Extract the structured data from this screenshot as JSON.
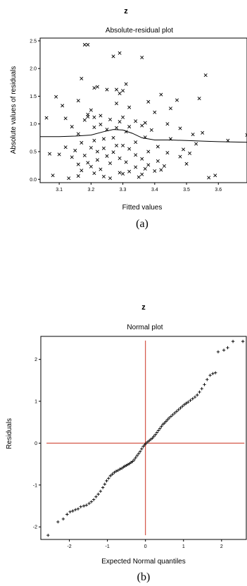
{
  "charts": [
    {
      "header": "z",
      "title": "Absolute-residual plot",
      "caption": "(a)",
      "chart_data": {
        "type": "scatter",
        "xlabel": "Fitted values",
        "ylabel": "Absolute values of residuals",
        "xlim": [
          3.04,
          3.69
        ],
        "ylim": [
          -0.06,
          2.55
        ],
        "x_ticks": [
          3.1,
          3.2,
          3.3,
          3.4,
          3.5,
          3.6
        ],
        "x_tick_labels": [
          "3.1",
          "3.2",
          "3.3",
          "3.4",
          "3.5",
          "3.6"
        ],
        "y_ticks": [
          0.0,
          0.5,
          1.0,
          1.5,
          2.0,
          2.5
        ],
        "y_tick_labels": [
          "0.0",
          "0.5",
          "1.0",
          "1.5",
          "2.0",
          "2.5"
        ],
        "marker": "x",
        "points": [
          [
            3.18,
            2.43
          ],
          [
            3.19,
            2.43
          ],
          [
            3.29,
            2.28
          ],
          [
            3.27,
            2.22
          ],
          [
            3.36,
            2.2
          ],
          [
            3.56,
            1.88
          ],
          [
            3.17,
            1.82
          ],
          [
            3.31,
            1.72
          ],
          [
            3.22,
            1.67
          ],
          [
            3.21,
            1.65
          ],
          [
            3.25,
            1.62
          ],
          [
            3.28,
            1.62
          ],
          [
            3.3,
            1.6
          ],
          [
            3.29,
            1.55
          ],
          [
            3.42,
            1.53
          ],
          [
            3.09,
            1.49
          ],
          [
            3.54,
            1.46
          ],
          [
            3.47,
            1.43
          ],
          [
            3.16,
            1.42
          ],
          [
            3.38,
            1.4
          ],
          [
            3.28,
            1.37
          ],
          [
            3.11,
            1.33
          ],
          [
            3.32,
            1.3
          ],
          [
            3.45,
            1.28
          ],
          [
            3.2,
            1.25
          ],
          [
            3.4,
            1.21
          ],
          [
            3.19,
            1.17
          ],
          [
            3.23,
            1.15
          ],
          [
            3.19,
            1.13
          ],
          [
            3.21,
            1.12
          ],
          [
            3.3,
            1.12
          ],
          [
            3.06,
            1.11
          ],
          [
            3.12,
            1.1
          ],
          [
            3.26,
            1.08
          ],
          [
            3.18,
            1.07
          ],
          [
            3.34,
            1.05
          ],
          [
            3.29,
            1.04
          ],
          [
            3.37,
            1.02
          ],
          [
            3.44,
            1.0
          ],
          [
            3.23,
            0.99
          ],
          [
            3.36,
            0.97
          ],
          [
            3.32,
            0.95
          ],
          [
            3.14,
            0.95
          ],
          [
            3.21,
            0.94
          ],
          [
            3.28,
            0.93
          ],
          [
            3.48,
            0.92
          ],
          [
            3.25,
            0.9
          ],
          [
            3.39,
            0.89
          ],
          [
            3.31,
            0.86
          ],
          [
            3.55,
            0.84
          ],
          [
            3.16,
            0.82
          ],
          [
            3.52,
            0.81
          ],
          [
            3.69,
            0.8
          ],
          [
            3.37,
            0.76
          ],
          [
            3.27,
            0.75
          ],
          [
            3.45,
            0.73
          ],
          [
            3.24,
            0.73
          ],
          [
            3.63,
            0.7
          ],
          [
            3.21,
            0.7
          ],
          [
            3.34,
            0.67
          ],
          [
            3.17,
            0.66
          ],
          [
            3.53,
            0.64
          ],
          [
            3.28,
            0.61
          ],
          [
            3.3,
            0.61
          ],
          [
            3.41,
            0.59
          ],
          [
            3.12,
            0.58
          ],
          [
            3.2,
            0.57
          ],
          [
            3.24,
            0.56
          ],
          [
            3.32,
            0.55
          ],
          [
            3.49,
            0.54
          ],
          [
            3.15,
            0.52
          ],
          [
            3.22,
            0.5
          ],
          [
            3.38,
            0.5
          ],
          [
            3.27,
            0.49
          ],
          [
            3.44,
            0.48
          ],
          [
            3.51,
            0.47
          ],
          [
            3.07,
            0.46
          ],
          [
            3.1,
            0.45
          ],
          [
            3.34,
            0.44
          ],
          [
            3.18,
            0.43
          ],
          [
            3.25,
            0.42
          ],
          [
            3.48,
            0.41
          ],
          [
            3.14,
            0.4
          ],
          [
            3.29,
            0.38
          ],
          [
            3.36,
            0.37
          ],
          [
            3.22,
            0.35
          ],
          [
            3.41,
            0.33
          ],
          [
            3.31,
            0.31
          ],
          [
            3.19,
            0.3
          ],
          [
            3.26,
            0.29
          ],
          [
            3.5,
            0.28
          ],
          [
            3.16,
            0.27
          ],
          [
            3.38,
            0.26
          ],
          [
            3.43,
            0.24
          ],
          [
            3.2,
            0.23
          ],
          [
            3.34,
            0.22
          ],
          [
            3.37,
            0.19
          ],
          [
            3.23,
            0.18
          ],
          [
            3.42,
            0.17
          ],
          [
            3.17,
            0.16
          ],
          [
            3.4,
            0.15
          ],
          [
            3.32,
            0.14
          ],
          [
            3.29,
            0.12
          ],
          [
            3.21,
            0.11
          ],
          [
            3.3,
            0.1
          ],
          [
            3.36,
            0.09
          ],
          [
            3.59,
            0.07
          ],
          [
            3.08,
            0.07
          ],
          [
            3.16,
            0.06
          ],
          [
            3.24,
            0.05
          ],
          [
            3.35,
            0.04
          ],
          [
            3.57,
            0.03
          ],
          [
            3.26,
            0.02
          ],
          [
            3.13,
            0.02
          ]
        ],
        "smooth_line": [
          [
            3.04,
            0.77
          ],
          [
            3.1,
            0.77
          ],
          [
            3.15,
            0.78
          ],
          [
            3.2,
            0.8
          ],
          [
            3.24,
            0.86
          ],
          [
            3.27,
            0.9
          ],
          [
            3.3,
            0.89
          ],
          [
            3.33,
            0.83
          ],
          [
            3.36,
            0.75
          ],
          [
            3.4,
            0.71
          ],
          [
            3.45,
            0.71
          ],
          [
            3.5,
            0.7
          ],
          [
            3.55,
            0.69
          ],
          [
            3.6,
            0.68
          ],
          [
            3.69,
            0.67
          ]
        ],
        "grid": false
      }
    },
    {
      "header": "z",
      "title": "Normal plot",
      "caption": "(b)",
      "chart_data": {
        "type": "scatter",
        "xlabel": "Expected Normal quantiles",
        "ylabel": "Residuals",
        "xlim": [
          -2.75,
          2.65
        ],
        "ylim": [
          -2.3,
          2.55
        ],
        "x_ticks": [
          -2,
          -1,
          0,
          1,
          2
        ],
        "x_tick_labels": [
          "-2",
          "-1",
          "0",
          "1",
          "2"
        ],
        "y_ticks": [
          -2,
          -1,
          0,
          1,
          2
        ],
        "y_tick_labels": [
          "-2",
          "-1",
          "0",
          "1",
          "2"
        ],
        "marker": "+",
        "reference_lines": {
          "x": 0,
          "y": 0,
          "color": "#cc3322"
        },
        "points": [
          [
            -2.56,
            -2.2
          ],
          [
            -2.3,
            -1.88
          ],
          [
            -2.16,
            -1.81
          ],
          [
            -2.06,
            -1.7
          ],
          [
            -1.98,
            -1.64
          ],
          [
            -1.91,
            -1.62
          ],
          [
            -1.84,
            -1.59
          ],
          [
            -1.77,
            -1.57
          ],
          [
            -1.7,
            -1.52
          ],
          [
            -1.62,
            -1.5
          ],
          [
            -1.55,
            -1.48
          ],
          [
            -1.48,
            -1.44
          ],
          [
            -1.42,
            -1.4
          ],
          [
            -1.36,
            -1.35
          ],
          [
            -1.3,
            -1.28
          ],
          [
            -1.24,
            -1.22
          ],
          [
            -1.18,
            -1.15
          ],
          [
            -1.12,
            -1.06
          ],
          [
            -1.07,
            -0.98
          ],
          [
            -1.02,
            -0.9
          ],
          [
            -0.97,
            -0.84
          ],
          [
            -0.92,
            -0.78
          ],
          [
            -0.87,
            -0.74
          ],
          [
            -0.82,
            -0.7
          ],
          [
            -0.77,
            -0.67
          ],
          [
            -0.72,
            -0.65
          ],
          [
            -0.67,
            -0.62
          ],
          [
            -0.62,
            -0.6
          ],
          [
            -0.58,
            -0.57
          ],
          [
            -0.54,
            -0.55
          ],
          [
            -0.5,
            -0.53
          ],
          [
            -0.46,
            -0.51
          ],
          [
            -0.42,
            -0.49
          ],
          [
            -0.38,
            -0.46
          ],
          [
            -0.34,
            -0.44
          ],
          [
            -0.3,
            -0.4
          ],
          [
            -0.26,
            -0.35
          ],
          [
            -0.22,
            -0.3
          ],
          [
            -0.18,
            -0.25
          ],
          [
            -0.14,
            -0.2
          ],
          [
            -0.1,
            -0.14
          ],
          [
            -0.06,
            -0.08
          ],
          [
            -0.02,
            -0.04
          ],
          [
            0.02,
            0.0
          ],
          [
            0.06,
            0.03
          ],
          [
            0.1,
            0.06
          ],
          [
            0.14,
            0.09
          ],
          [
            0.18,
            0.12
          ],
          [
            0.22,
            0.16
          ],
          [
            0.26,
            0.2
          ],
          [
            0.3,
            0.25
          ],
          [
            0.34,
            0.3
          ],
          [
            0.38,
            0.35
          ],
          [
            0.42,
            0.4
          ],
          [
            0.46,
            0.45
          ],
          [
            0.5,
            0.48
          ],
          [
            0.54,
            0.52
          ],
          [
            0.58,
            0.56
          ],
          [
            0.62,
            0.6
          ],
          [
            0.67,
            0.64
          ],
          [
            0.72,
            0.68
          ],
          [
            0.77,
            0.72
          ],
          [
            0.82,
            0.76
          ],
          [
            0.87,
            0.8
          ],
          [
            0.92,
            0.84
          ],
          [
            0.97,
            0.88
          ],
          [
            1.02,
            0.92
          ],
          [
            1.07,
            0.95
          ],
          [
            1.12,
            0.98
          ],
          [
            1.18,
            1.02
          ],
          [
            1.24,
            1.06
          ],
          [
            1.3,
            1.1
          ],
          [
            1.36,
            1.15
          ],
          [
            1.42,
            1.22
          ],
          [
            1.48,
            1.3
          ],
          [
            1.55,
            1.4
          ],
          [
            1.62,
            1.52
          ],
          [
            1.7,
            1.62
          ],
          [
            1.77,
            1.66
          ],
          [
            1.84,
            1.68
          ],
          [
            1.91,
            2.18
          ],
          [
            2.06,
            2.22
          ],
          [
            2.16,
            2.28
          ],
          [
            2.3,
            2.43
          ],
          [
            2.56,
            2.43
          ]
        ],
        "grid": false
      }
    }
  ]
}
